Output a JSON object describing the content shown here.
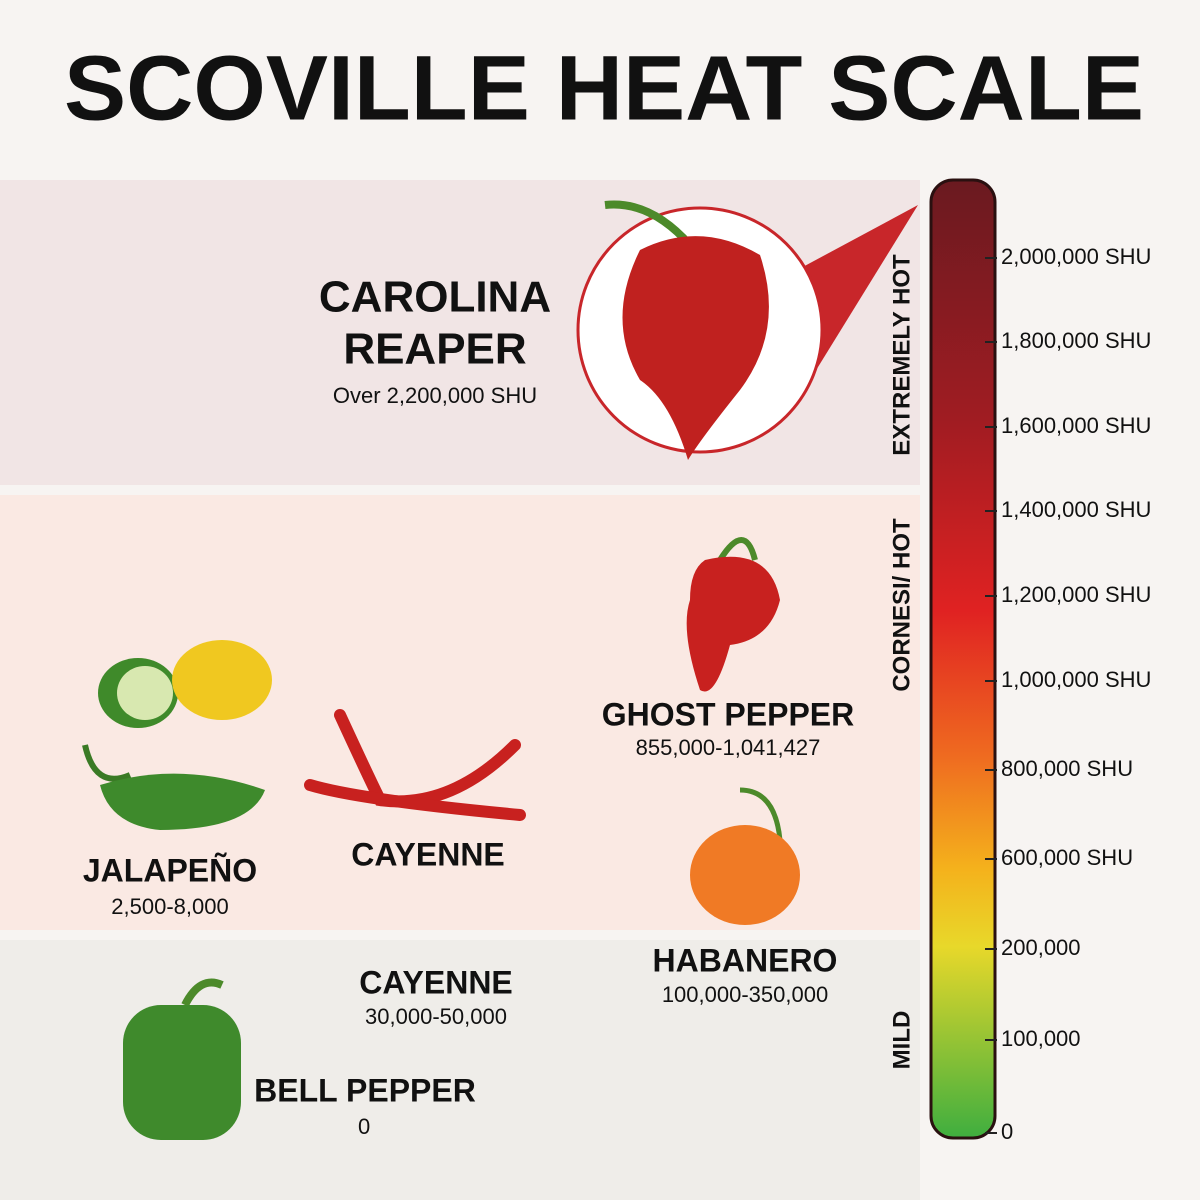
{
  "title": "SCOVILLE HEAT SCALE",
  "scale": {
    "zones": [
      "EXTREMELY HOT",
      "CORNESI/ HOT",
      "MILD"
    ],
    "ticks": [
      "2,000,000 SHU",
      "1,800,000 SHU",
      "1,600,000 SHU",
      "1,400,000 SHU",
      "1,200,000 SHU",
      "1,000,000 SHU",
      "800,000 SHU",
      "600,000 SHU",
      "200,000",
      "100,000",
      "0"
    ]
  },
  "peppers": [
    {
      "name": [
        "CAROLINA",
        "REAPER"
      ],
      "range": "Over 2,200,000 SHU"
    },
    {
      "name": [
        "GHOST PEPPER"
      ],
      "range": "855,000-1,041,427"
    },
    {
      "name": [
        "JALAPEÑO"
      ],
      "range": "2,500-8,000"
    },
    {
      "name": [
        "CAYENNE"
      ]
    },
    {
      "name": [
        "CAYENNE"
      ],
      "range": "30,000-50,000"
    },
    {
      "name": [
        "HABANERO"
      ],
      "range": "100,000-350,000"
    },
    {
      "name": [
        "BELL PEPPER"
      ],
      "range": "0"
    }
  ]
}
